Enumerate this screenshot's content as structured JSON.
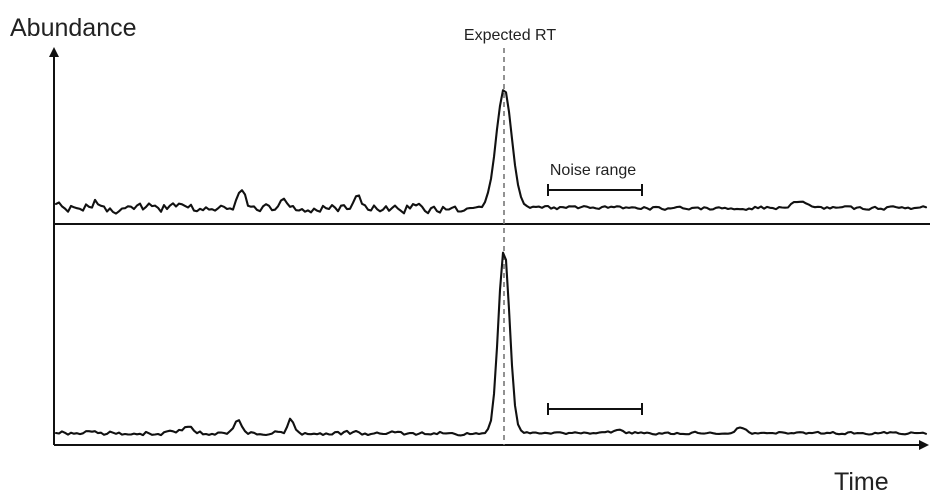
{
  "labels": {
    "y_axis": "Abundance",
    "x_axis": "Time",
    "expected_rt": "Expected RT",
    "noise_range": "Noise range"
  },
  "colors": {
    "ink": "#111111",
    "text": "#222222",
    "guide": "#777777",
    "background": "#ffffff"
  },
  "panels": [
    {
      "id": "top",
      "peak": "tall",
      "noise": "high",
      "shows_noise_range_label": true
    },
    {
      "id": "bottom",
      "peak": "tall",
      "noise": "low",
      "shows_noise_range_label": false
    }
  ]
}
